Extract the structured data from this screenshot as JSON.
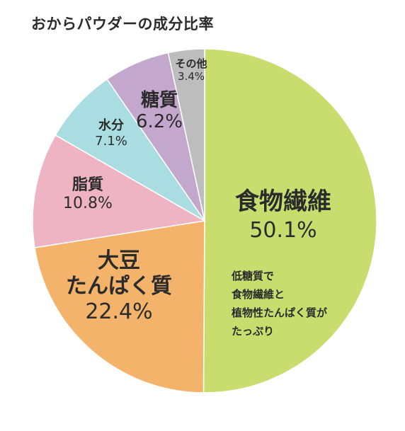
{
  "chart_data": {
    "type": "pie",
    "title": "おからパウダーの成分比率",
    "colors": {
      "食物繊維": "#c8dd6e",
      "大豆たんぱく質": "#f3b36a",
      "脂質": "#eeb4c3",
      "水分": "#a9dde1",
      "糖質": "#c4a7cc",
      "その他": "#bdbdbd"
    },
    "slices": [
      {
        "label": "食物繊維",
        "value": 50.1,
        "display": "50.1%"
      },
      {
        "label": "大豆\nたんぱく質",
        "value": 22.4,
        "display": "22.4%"
      },
      {
        "label": "脂質",
        "value": 10.8,
        "display": "10.8%"
      },
      {
        "label": "水分",
        "value": 7.1,
        "display": "7.1%"
      },
      {
        "label": "糖質",
        "value": 6.2,
        "display": "6.2%"
      },
      {
        "label": "その他",
        "value": 3.4,
        "display": "3.4%"
      }
    ],
    "annotation": [
      "低糖質で",
      "食物繊維と",
      "植物性たんぱく質が",
      "たっぷり"
    ],
    "start": "12 o'clock",
    "direction": "clockwise",
    "legend": "none"
  }
}
